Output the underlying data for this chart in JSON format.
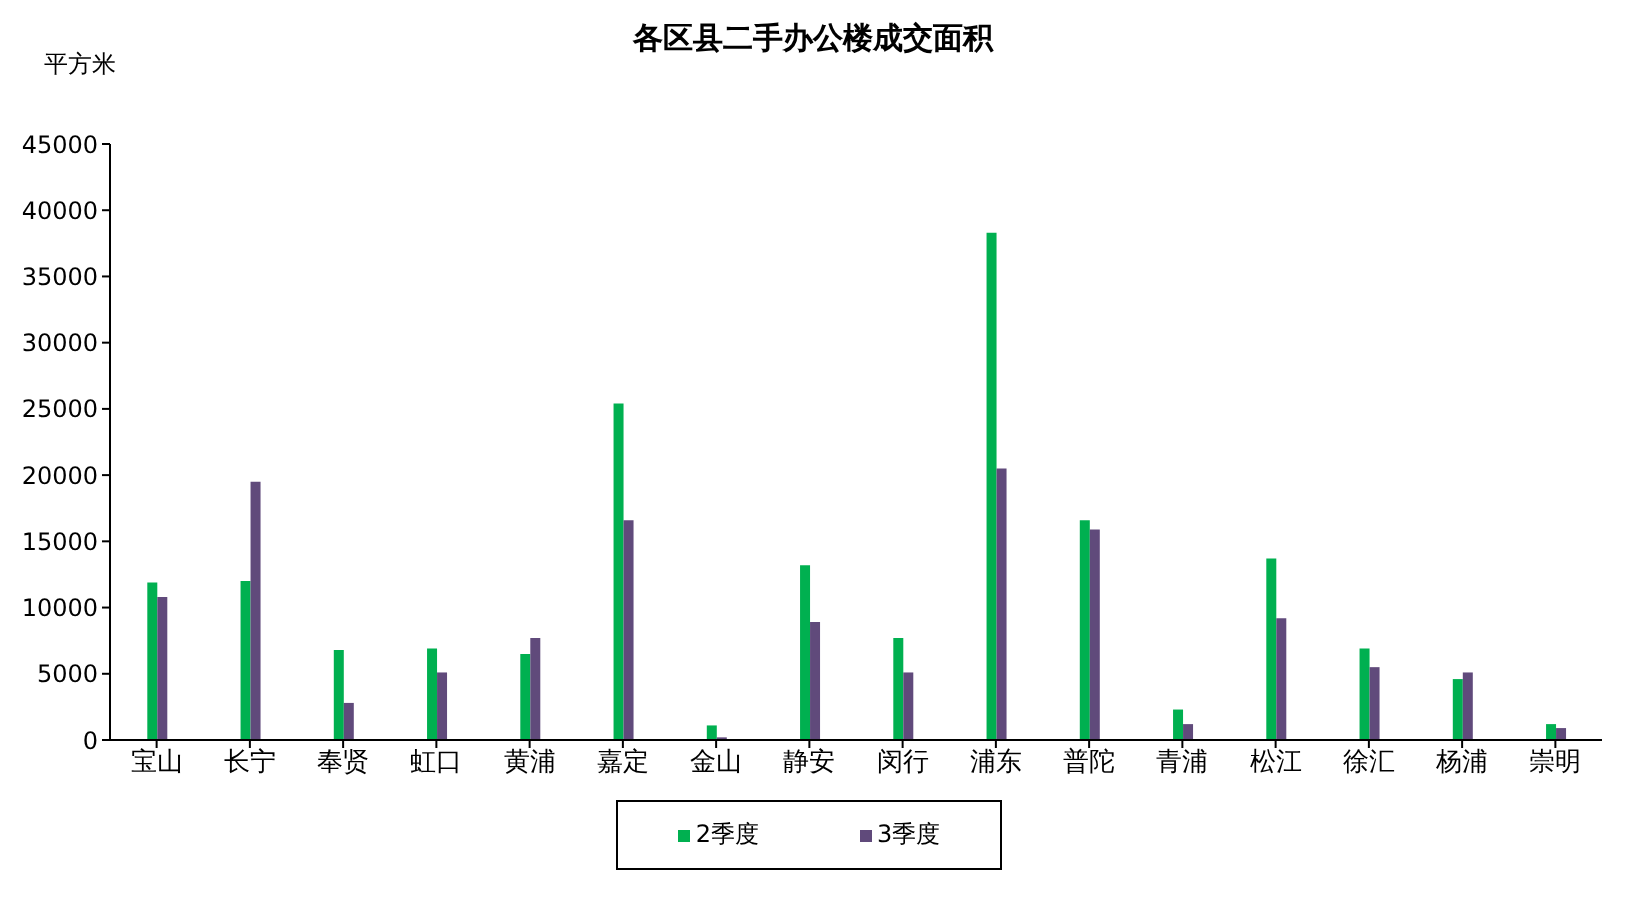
{
  "chart_data": {
    "type": "bar",
    "title": "各区县二手办公楼成交面积",
    "ylabel": "平方米",
    "categories": [
      "宝山",
      "长宁",
      "奉贤",
      "虹口",
      "黄浦",
      "嘉定",
      "金山",
      "静安",
      "闵行",
      "浦东",
      "普陀",
      "青浦",
      "松江",
      "徐汇",
      "杨浦",
      "崇明"
    ],
    "series": [
      {
        "name": "2季度",
        "color": "#00b050",
        "values": [
          11900,
          12000,
          6800,
          6900,
          6500,
          25400,
          1100,
          13200,
          7700,
          38300,
          16600,
          2300,
          13700,
          6900,
          4600,
          1200
        ]
      },
      {
        "name": "3季度",
        "color": "#604a7b",
        "values": [
          10800,
          19500,
          2800,
          5100,
          7700,
          16600,
          200,
          8900,
          5100,
          20500,
          15900,
          1200,
          9200,
          5500,
          5100,
          900
        ]
      }
    ],
    "ylim": [
      0,
      45000
    ],
    "yticks": [
      0,
      5000,
      10000,
      15000,
      20000,
      25000,
      30000,
      35000,
      40000,
      45000
    ],
    "grid": false,
    "legend": "bottom"
  }
}
